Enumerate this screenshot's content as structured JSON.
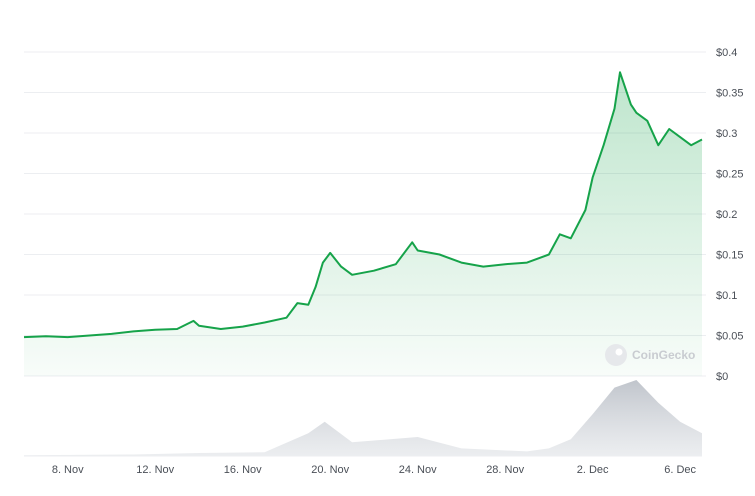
{
  "chart_data": {
    "type": "area",
    "title": "",
    "xlabel": "",
    "ylabel": "",
    "ylim": [
      0,
      0.4
    ],
    "y_ticks": [
      "$0",
      "$0.05",
      "$0.1",
      "$0.15",
      "$0.2",
      "$0.25",
      "$0.3",
      "$0.35",
      "$0.4"
    ],
    "x_range": [
      "2023-11-06",
      "2023-12-07"
    ],
    "x_ticks": [
      {
        "label": "8. Nov",
        "date": "2023-11-08"
      },
      {
        "label": "12. Nov",
        "date": "2023-11-12"
      },
      {
        "label": "16. Nov",
        "date": "2023-11-16"
      },
      {
        "label": "20. Nov",
        "date": "2023-11-20"
      },
      {
        "label": "24. Nov",
        "date": "2023-11-24"
      },
      {
        "label": "28. Nov",
        "date": "2023-11-28"
      },
      {
        "label": "2. Dec",
        "date": "2023-12-02"
      },
      {
        "label": "6. Dec",
        "date": "2023-12-06"
      }
    ],
    "grid": true,
    "legend": "none",
    "line_color": "#16a34a",
    "fill_color": "#16a34a",
    "volume_color": "#cfd3d9",
    "series": [
      {
        "values": [
          [
            "2023-11-06",
            0.048
          ],
          [
            "2023-11-07",
            0.049
          ],
          [
            "2023-11-08",
            0.048
          ],
          [
            "2023-11-09",
            0.05
          ],
          [
            "2023-11-10",
            0.052
          ],
          [
            "2023-11-11",
            0.055
          ],
          [
            "2023-11-12",
            0.057
          ],
          [
            "2023-11-13",
            0.058
          ],
          [
            "2023-11-13T18:00",
            0.068
          ],
          [
            "2023-11-14",
            0.062
          ],
          [
            "2023-11-15",
            0.058
          ],
          [
            "2023-11-16",
            0.061
          ],
          [
            "2023-11-17",
            0.066
          ],
          [
            "2023-11-18",
            0.072
          ],
          [
            "2023-11-18T12:00",
            0.09
          ],
          [
            "2023-11-19",
            0.088
          ],
          [
            "2023-11-19T08:00",
            0.11
          ],
          [
            "2023-11-19T16:00",
            0.14
          ],
          [
            "2023-11-20",
            0.152
          ],
          [
            "2023-11-20T12:00",
            0.135
          ],
          [
            "2023-11-21",
            0.125
          ],
          [
            "2023-11-22",
            0.13
          ],
          [
            "2023-11-23",
            0.138
          ],
          [
            "2023-11-23T18:00",
            0.165
          ],
          [
            "2023-11-24",
            0.155
          ],
          [
            "2023-11-25",
            0.15
          ],
          [
            "2023-11-26",
            0.14
          ],
          [
            "2023-11-27",
            0.135
          ],
          [
            "2023-11-28",
            0.138
          ],
          [
            "2023-11-29",
            0.14
          ],
          [
            "2023-11-30",
            0.15
          ],
          [
            "2023-11-30T12:00",
            0.175
          ],
          [
            "2023-12-01",
            0.17
          ],
          [
            "2023-12-01T16:00",
            0.205
          ],
          [
            "2023-12-02",
            0.245
          ],
          [
            "2023-12-02T12:00",
            0.285
          ],
          [
            "2023-12-03",
            0.33
          ],
          [
            "2023-12-03T06:00",
            0.375
          ],
          [
            "2023-12-03T18:00",
            0.335
          ],
          [
            "2023-12-04",
            0.325
          ],
          [
            "2023-12-04T12:00",
            0.315
          ],
          [
            "2023-12-05",
            0.285
          ],
          [
            "2023-12-05T12:00",
            0.305
          ],
          [
            "2023-12-06",
            0.295
          ],
          [
            "2023-12-06T12:00",
            0.285
          ],
          [
            "2023-12-07",
            0.292
          ]
        ]
      }
    ],
    "volume": [
      [
        "2023-11-06",
        0.01
      ],
      [
        "2023-11-11",
        0.02
      ],
      [
        "2023-11-14",
        0.04
      ],
      [
        "2023-11-17",
        0.05
      ],
      [
        "2023-11-19",
        0.3
      ],
      [
        "2023-11-19T18:00",
        0.45
      ],
      [
        "2023-11-21",
        0.18
      ],
      [
        "2023-11-24",
        0.25
      ],
      [
        "2023-11-26",
        0.1
      ],
      [
        "2023-11-29",
        0.06
      ],
      [
        "2023-11-30",
        0.1
      ],
      [
        "2023-12-01",
        0.22
      ],
      [
        "2023-12-02",
        0.55
      ],
      [
        "2023-12-03",
        0.9
      ],
      [
        "2023-12-04",
        1.0
      ],
      [
        "2023-12-05",
        0.7
      ],
      [
        "2023-12-06",
        0.45
      ],
      [
        "2023-12-07",
        0.3
      ]
    ]
  },
  "watermark": {
    "text": "CoinGecko"
  }
}
